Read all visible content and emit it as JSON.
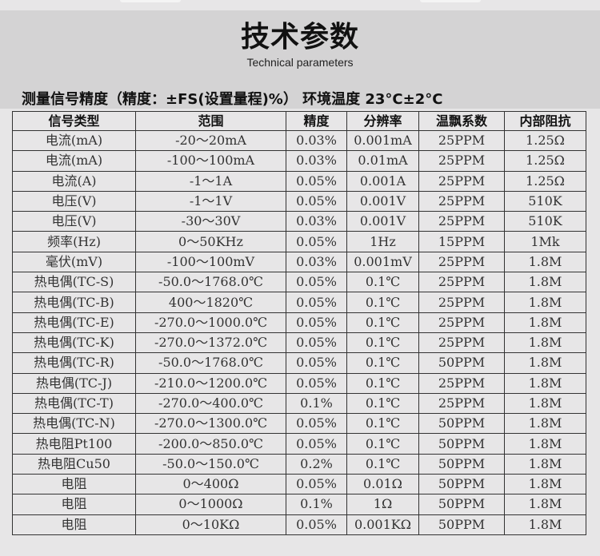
{
  "header": {
    "title": "技术参数",
    "subtitle": "Technical parameters"
  },
  "note": "测量信号精度（精度：±FS(设置量程)%） 环境温度 23°C±2°C",
  "table": {
    "columns": [
      "信号类型",
      "范围",
      "精度",
      "分辨率",
      "温飘系数",
      "内部阻抗"
    ],
    "rows": [
      [
        "电流(mA)",
        "-20～20mA",
        "0.03%",
        "0.001mA",
        "25PPM",
        "1.25Ω"
      ],
      [
        "电流(mA)",
        "-100～100mA",
        "0.03%",
        "0.01mA",
        "25PPM",
        "1.25Ω"
      ],
      [
        "电流(A)",
        "-1～1A",
        "0.05%",
        "0.001A",
        "25PPM",
        "1.25Ω"
      ],
      [
        "电压(V)",
        "-1～1V",
        "0.05%",
        "0.001V",
        "25PPM",
        "510K"
      ],
      [
        "电压(V)",
        "-30～30V",
        "0.03%",
        "0.001V",
        "25PPM",
        "510K"
      ],
      [
        "频率(Hz)",
        "0～50KHz",
        "0.05%",
        "1Hz",
        "15PPM",
        "1Mk"
      ],
      [
        "毫伏(mV)",
        "-100～100mV",
        "0.03%",
        "0.001mV",
        "25PPM",
        "1.8M"
      ],
      [
        "热电偶(TC-S)",
        "-50.0～1768.0℃",
        "0.05%",
        "0.1℃",
        "25PPM",
        "1.8M"
      ],
      [
        "热电偶(TC-B)",
        "400～1820℃",
        "0.05%",
        "0.1℃",
        "25PPM",
        "1.8M"
      ],
      [
        "热电偶(TC-E)",
        "-270.0～1000.0℃",
        "0.05%",
        "0.1℃",
        "25PPM",
        "1.8M"
      ],
      [
        "热电偶(TC-K)",
        "-270.0～1372.0℃",
        "0.05%",
        "0.1℃",
        "25PPM",
        "1.8M"
      ],
      [
        "热电偶(TC-R)",
        "-50.0～1768.0℃",
        "0.05%",
        "0.1℃",
        "50PPM",
        "1.8M"
      ],
      [
        "热电偶(TC-J)",
        "-210.0～1200.0℃",
        "0.05%",
        "0.1℃",
        "25PPM",
        "1.8M"
      ],
      [
        "热电偶(TC-T)",
        "-270.0～400.0℃",
        "0.1%",
        "0.1℃",
        "25PPM",
        "1.8M"
      ],
      [
        "热电偶(TC-N)",
        "-270.0～1300.0℃",
        "0.05%",
        "0.1℃",
        "50PPM",
        "1.8M"
      ],
      [
        "热电阻Pt100",
        "-200.0～850.0℃",
        "0.05%",
        "0.1℃",
        "50PPM",
        "1.8M"
      ],
      [
        "热电阻Cu50",
        "-50.0～150.0℃",
        "0.2%",
        "0.1℃",
        "50PPM",
        "1.8M"
      ],
      [
        "电阻",
        "0～400Ω",
        "0.05%",
        "0.01Ω",
        "50PPM",
        "1.8M"
      ],
      [
        "电阻",
        "0～1000Ω",
        "0.1%",
        "1Ω",
        "50PPM",
        "1.8M"
      ],
      [
        "电阻",
        "0～10KΩ",
        "0.05%",
        "0.001KΩ",
        "50PPM",
        "1.8M"
      ]
    ]
  }
}
